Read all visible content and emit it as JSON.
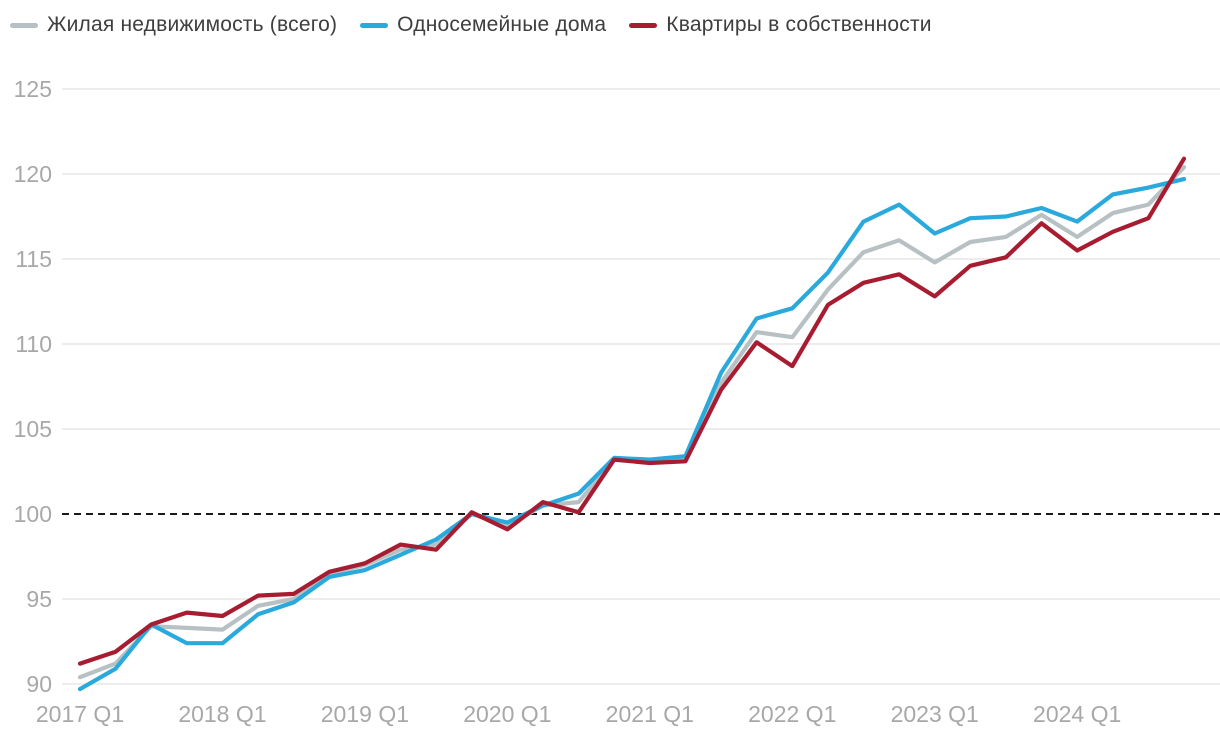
{
  "legend": {
    "items": [
      {
        "label": "Жилая недвижимость (всего)",
        "color": "#b7c1c4"
      },
      {
        "label": "Односемейные дома",
        "color": "#2aa9dd"
      },
      {
        "label": "Квартиры в собственности",
        "color": "#a81c31"
      }
    ]
  },
  "chart_data": {
    "type": "line",
    "title": "",
    "xlabel": "",
    "ylabel": "",
    "categories": [
      "2017 Q1",
      "2017 Q2",
      "2017 Q3",
      "2017 Q4",
      "2018 Q1",
      "2018 Q2",
      "2018 Q3",
      "2018 Q4",
      "2019 Q1",
      "2019 Q2",
      "2019 Q3",
      "2019 Q4",
      "2020 Q1",
      "2020 Q2",
      "2020 Q3",
      "2020 Q4",
      "2021 Q1",
      "2021 Q2",
      "2021 Q3",
      "2021 Q4",
      "2022 Q1",
      "2022 Q2",
      "2022 Q3",
      "2022 Q4",
      "2023 Q1",
      "2023 Q2",
      "2023 Q3",
      "2023 Q4",
      "2024 Q1",
      "2024 Q2",
      "2024 Q3",
      "2024 Q4"
    ],
    "series": [
      {
        "name": "Жилая недвижимость (всего)",
        "color": "#b7c1c4",
        "values": [
          90.4,
          91.2,
          93.4,
          93.3,
          93.2,
          94.6,
          95.0,
          96.5,
          97.0,
          97.9,
          98.2,
          100.0,
          99.3,
          100.5,
          100.7,
          103.2,
          103.1,
          103.2,
          107.7,
          110.7,
          110.4,
          113.2,
          115.4,
          116.1,
          114.8,
          116.0,
          116.3,
          117.6,
          116.3,
          117.7,
          118.2,
          120.4
        ]
      },
      {
        "name": "Односемейные дома",
        "color": "#2aa9dd",
        "values": [
          89.7,
          90.9,
          93.5,
          92.4,
          92.4,
          94.1,
          94.8,
          96.3,
          96.7,
          97.6,
          98.5,
          100.0,
          99.5,
          100.5,
          101.2,
          103.3,
          103.2,
          103.4,
          108.3,
          111.5,
          112.1,
          114.2,
          117.2,
          118.2,
          116.5,
          117.4,
          117.5,
          118.0,
          117.2,
          118.8,
          119.2,
          119.7
        ]
      },
      {
        "name": "Квартиры в собственности",
        "color": "#a81c31",
        "values": [
          91.2,
          91.9,
          93.5,
          94.2,
          94.0,
          95.2,
          95.3,
          96.6,
          97.1,
          98.2,
          97.9,
          100.1,
          99.1,
          100.7,
          100.1,
          103.2,
          103.0,
          103.1,
          107.3,
          110.1,
          108.7,
          112.3,
          113.6,
          114.1,
          112.8,
          114.6,
          115.1,
          117.1,
          115.5,
          116.6,
          117.4,
          120.9
        ]
      }
    ],
    "x_tick_labels": [
      "2017 Q1",
      "2018 Q1",
      "2019 Q1",
      "2020 Q1",
      "2021 Q1",
      "2022 Q1",
      "2023 Q1",
      "2024 Q1"
    ],
    "y_ticks": [
      90,
      95,
      100,
      105,
      110,
      115,
      120,
      125
    ],
    "baseline": 100,
    "ylim": [
      88.5,
      126.5
    ],
    "grid": "horizontal",
    "baseline_style": "black-dashed",
    "legend_position": "top-left"
  }
}
